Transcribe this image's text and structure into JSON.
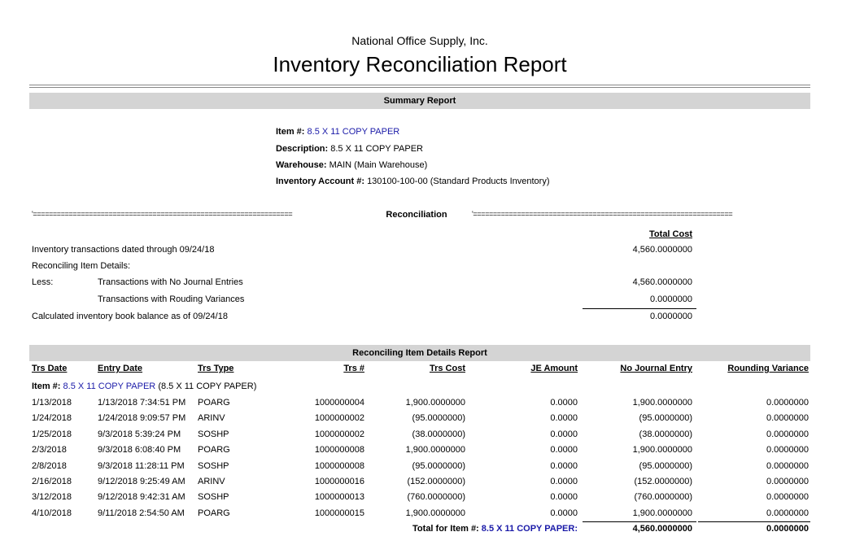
{
  "header": {
    "company": "National Office Supply, Inc.",
    "title": "Inventory Reconciliation Report"
  },
  "summary": {
    "bar_label": "Summary Report",
    "item_label": "Item #:",
    "item_value": "8.5 X 11 COPY PAPER",
    "description_label": "Description:",
    "description_value": "8.5 X 11 COPY PAPER",
    "warehouse_label": "Warehouse:",
    "warehouse_value": "MAIN (Main Warehouse)",
    "account_label": "Inventory Account #:",
    "account_value": "130100-100-00 (Standard Products Inventory)"
  },
  "reconciliation": {
    "left_rule": "'=================================================================",
    "label": "Reconciliation",
    "right_rule": "'=================================================================",
    "total_cost_header": "Total Cost",
    "line1": "Inventory transactions dated through 09/24/18",
    "line1_value": "4,560.0000000",
    "line2": "Reconciling Item Details:",
    "less_label": "Less:",
    "line3": "Transactions with No Journal Entries",
    "line3_value": "4,560.0000000",
    "line4": "Transactions with Rouding Variances",
    "line4_value": "0.0000000",
    "line5": "Calculated inventory book balance as of 09/24/18",
    "line5_value": "0.0000000"
  },
  "details": {
    "bar_label": "Reconciling Item Details Report",
    "columns": [
      "Trs Date",
      "Entry Date",
      "Trs Type",
      "Trs #",
      "Trs Cost",
      "JE Amount",
      "No Journal Entry",
      "Rounding Variance"
    ],
    "item_label": "Item #:",
    "item_value": "8.5 X 11 COPY PAPER",
    "item_desc": "(8.5 X 11 COPY PAPER)",
    "rows": [
      [
        "1/13/2018",
        "1/13/2018 7:34:51 PM",
        "POARG",
        "1000000004",
        "1,900.0000000",
        "0.0000",
        "1,900.0000000",
        "0.0000000"
      ],
      [
        "1/24/2018",
        "1/24/2018 9:09:57 PM",
        "ARINV",
        "1000000002",
        "(95.0000000)",
        "0.0000",
        "(95.0000000)",
        "0.0000000"
      ],
      [
        "1/25/2018",
        "9/3/2018 5:39:24 PM",
        "SOSHP",
        "1000000002",
        "(38.0000000)",
        "0.0000",
        "(38.0000000)",
        "0.0000000"
      ],
      [
        "2/3/2018",
        "9/3/2018 6:08:40 PM",
        "POARG",
        "1000000008",
        "1,900.0000000",
        "0.0000",
        "1,900.0000000",
        "0.0000000"
      ],
      [
        "2/8/2018",
        "9/3/2018 11:28:11 PM",
        "SOSHP",
        "1000000008",
        "(95.0000000)",
        "0.0000",
        "(95.0000000)",
        "0.0000000"
      ],
      [
        "2/16/2018",
        "9/12/2018 9:25:49 AM",
        "ARINV",
        "1000000016",
        "(152.0000000)",
        "0.0000",
        "(152.0000000)",
        "0.0000000"
      ],
      [
        "3/12/2018",
        "9/12/2018 9:42:31 AM",
        "SOSHP",
        "1000000013",
        "(760.0000000)",
        "0.0000",
        "(760.0000000)",
        "0.0000000"
      ],
      [
        "4/10/2018",
        "9/11/2018 2:54:50 AM",
        "POARG",
        "1000000015",
        "1,900.0000000",
        "0.0000",
        "1,900.0000000",
        "0.0000000"
      ]
    ],
    "total_label": "Total for Item #:",
    "total_item": "8.5 X 11 COPY PAPER:",
    "total_no_journal": "4,560.0000000",
    "total_rounding": "0.0000000"
  }
}
